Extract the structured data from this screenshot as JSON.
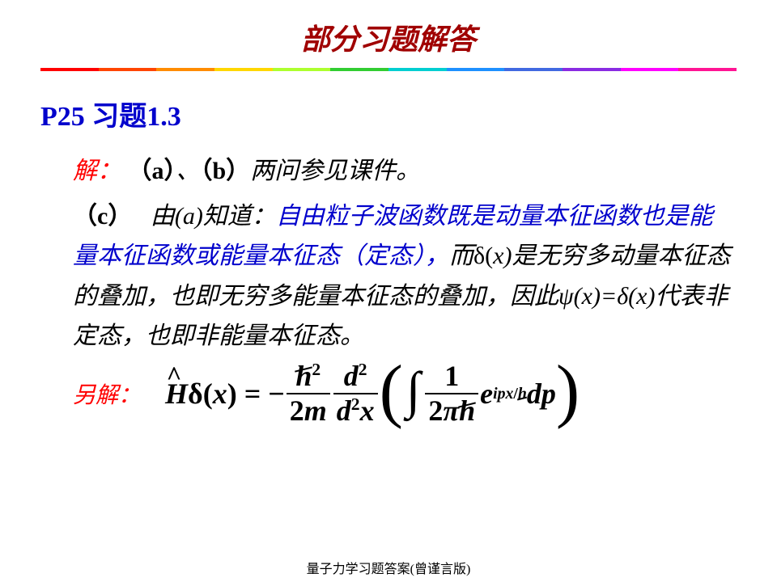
{
  "title": {
    "text": "部分习题解答",
    "color": "#a00000",
    "fontsize": 36
  },
  "rainbow": [
    "#ff0000",
    "#ff4500",
    "#ff8c00",
    "#ffd700",
    "#adff2f",
    "#32cd32",
    "#00ced1",
    "#1e90ff",
    "#4169e1",
    "#8a2be2",
    "#ff00ff",
    "#ff1493"
  ],
  "section": {
    "text": "P25 习题1.3",
    "color": "#0000cc"
  },
  "answer_label": "解：",
  "part_ab": {
    "a": "（a）",
    "mid": "、",
    "b": "（b）",
    "tail": "两问参见课件。"
  },
  "part_c": {
    "c_label": "（c）",
    "lead": "由(a)知道：",
    "blue": "自由粒子波函数既是动量本征函数也是能量本征函数或能量本征态（定态），",
    "after_blue_1": "而",
    "delta1": "δ(",
    "x1": "x",
    "delta1_close": ")是无穷多动量本征态的叠加，也即无穷多能量本征态的叠加，因此ψ(",
    "x2": "x",
    "mid2": ")=δ(",
    "x3": "x",
    "tail": ")代表非定态，也即非能量本征态。"
  },
  "alt_label": "另解：",
  "equation": {
    "H": "H",
    "delta": "δ",
    "open": "(",
    "x": "x",
    "close": ")",
    "eq": "=",
    "minus": "−",
    "hbar": "h",
    "two": "2",
    "m": "m",
    "d": "d",
    "one": "1",
    "pi": "π",
    "int": "∫",
    "e": "e",
    "i": "i",
    "p": "p",
    "slash": "/",
    "dp": "dp"
  },
  "footer": "量子力学习题答案(曾谨言版)",
  "colors": {
    "red": "#ff0000",
    "darkred": "#a00000",
    "blue": "#0000cc",
    "black": "#000000"
  }
}
